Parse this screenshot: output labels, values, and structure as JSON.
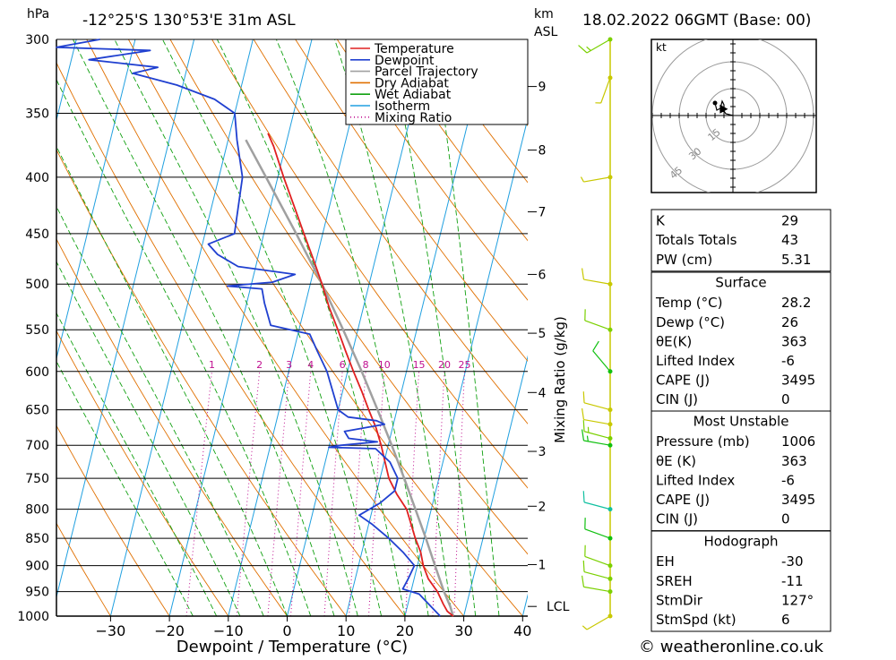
{
  "header": {
    "pressure_unit": "hPa",
    "location": "-12°25'S 130°53'E 31m ASL",
    "height_unit_1": "km",
    "height_unit_2": "ASL",
    "datetime": "18.02.2022 06GMT (Base: 00)"
  },
  "footer": {
    "copyright": "© weatheronline.co.uk"
  },
  "colors": {
    "temperature": "#e02020",
    "dewpoint": "#2040d0",
    "parcel": "#a0a0a0",
    "dry_adiabat": "#e07000",
    "wet_adiabat": "#10a010",
    "isotherm": "#20a0e0",
    "mixing_ratio": "#c01090",
    "wind_barb": "#c8c800"
  },
  "chart_data": {
    "type": "skew-t",
    "xlabel": "Dewpoint / Temperature (°C)",
    "ylabel_left": "hPa",
    "ylabel_right": "Mixing Ratio (g/kg)",
    "pressure_levels": [
      300,
      350,
      400,
      450,
      500,
      550,
      600,
      650,
      700,
      750,
      800,
      850,
      900,
      950,
      1000
    ],
    "pressure_labels": [
      "300",
      "350",
      "400",
      "450",
      "500",
      "550",
      "600",
      "650",
      "700",
      "750",
      "800",
      "850",
      "900",
      "950",
      "1000"
    ],
    "temperature_ticks": [
      -30,
      -20,
      -10,
      0,
      10,
      20,
      30,
      40
    ],
    "temperature_tick_labels": [
      "−30",
      "−20",
      "−10",
      "0",
      "10",
      "20",
      "30",
      "40"
    ],
    "xlim": [
      -40,
      40
    ],
    "ylim": [
      1000,
      300
    ],
    "km_ticks": [
      {
        "km": 1,
        "label": "1",
        "p": 898
      },
      {
        "km": 2,
        "label": "2",
        "p": 795
      },
      {
        "km": 3,
        "label": "3",
        "p": 709
      },
      {
        "km": 4,
        "label": "4",
        "p": 627
      },
      {
        "km": 5,
        "label": "5",
        "p": 554
      },
      {
        "km": 6,
        "label": "6",
        "p": 490
      },
      {
        "km": 7,
        "label": "7",
        "p": 430
      },
      {
        "km": 8,
        "label": "8",
        "p": 378
      },
      {
        "km": 9,
        "label": "9",
        "p": 331
      }
    ],
    "lcl": {
      "label": "LCL",
      "p": 980
    },
    "mixing_ratio_labels": [
      {
        "w": 1,
        "label": "1"
      },
      {
        "w": 2,
        "label": "2"
      },
      {
        "w": 3,
        "label": "3"
      },
      {
        "w": 4,
        "label": "4"
      },
      {
        "w": 6,
        "label": "6"
      },
      {
        "w": 8,
        "label": "8"
      },
      {
        "w": 10,
        "label": "10"
      },
      {
        "w": 15,
        "label": "15"
      },
      {
        "w": 20,
        "label": "20"
      },
      {
        "w": 25,
        "label": "25"
      }
    ],
    "mixing_ratio_label_pressure": 600,
    "legend": [
      {
        "key": "temperature",
        "label": "Temperature",
        "style": "solid"
      },
      {
        "key": "dewpoint",
        "label": "Dewpoint",
        "style": "solid"
      },
      {
        "key": "parcel",
        "label": "Parcel Trajectory",
        "style": "solid"
      },
      {
        "key": "dry_adiabat",
        "label": "Dry Adiabat",
        "style": "solid"
      },
      {
        "key": "wet_adiabat",
        "label": "Wet Adiabat",
        "style": "solid"
      },
      {
        "key": "isotherm",
        "label": "Isotherm",
        "style": "solid"
      },
      {
        "key": "mixing_ratio",
        "label": "Mixing Ratio",
        "style": "dotted"
      }
    ],
    "temperature_profile": [
      [
        1000,
        28.2
      ],
      [
        990,
        27.0
      ],
      [
        975,
        26.0
      ],
      [
        950,
        24.5
      ],
      [
        925,
        22.4
      ],
      [
        900,
        21.0
      ],
      [
        875,
        20.0
      ],
      [
        850,
        18.5
      ],
      [
        800,
        15.8
      ],
      [
        775,
        13.5
      ],
      [
        750,
        11.5
      ],
      [
        700,
        8.8
      ],
      [
        675,
        7.2
      ],
      [
        650,
        5.2
      ],
      [
        625,
        3.2
      ],
      [
        600,
        1.0
      ],
      [
        575,
        -1.2
      ],
      [
        550,
        -3.4
      ],
      [
        525,
        -5.8
      ],
      [
        500,
        -8.0
      ],
      [
        475,
        -10.5
      ],
      [
        450,
        -13.2
      ],
      [
        425,
        -16.0
      ],
      [
        400,
        -19.0
      ],
      [
        375,
        -22.0
      ],
      [
        365,
        -23.5
      ]
    ],
    "dewpoint_profile": [
      [
        1000,
        26.0
      ],
      [
        985,
        24.5
      ],
      [
        965,
        22.5
      ],
      [
        955,
        21.5
      ],
      [
        945,
        18.5
      ],
      [
        925,
        19.0
      ],
      [
        900,
        19.5
      ],
      [
        875,
        17.0
      ],
      [
        850,
        14.0
      ],
      [
        825,
        10.5
      ],
      [
        810,
        8.0
      ],
      [
        790,
        11.0
      ],
      [
        770,
        13.0
      ],
      [
        750,
        13.0
      ],
      [
        725,
        11.0
      ],
      [
        705,
        8.0
      ],
      [
        703,
        0.0
      ],
      [
        700,
        2.0
      ],
      [
        695,
        8.0
      ],
      [
        690,
        3.0
      ],
      [
        680,
        2.0
      ],
      [
        670,
        8.5
      ],
      [
        665,
        7.0
      ],
      [
        660,
        2.0
      ],
      [
        650,
        0.0
      ],
      [
        600,
        -3.5
      ],
      [
        575,
        -6.0
      ],
      [
        555,
        -8.0
      ],
      [
        545,
        -15.0
      ],
      [
        520,
        -17.0
      ],
      [
        505,
        -18.0
      ],
      [
        502,
        -24.0
      ],
      [
        498,
        -16.5
      ],
      [
        490,
        -13.0
      ],
      [
        482,
        -23.0
      ],
      [
        470,
        -27.0
      ],
      [
        460,
        -29.0
      ],
      [
        450,
        -25.0
      ],
      [
        400,
        -26.0
      ],
      [
        370,
        -28.5
      ],
      [
        350,
        -30.0
      ],
      [
        340,
        -34.0
      ],
      [
        330,
        -41.0
      ],
      [
        322,
        -49.0
      ],
      [
        318,
        -45.0
      ],
      [
        313,
        -57.0
      ],
      [
        307,
        -47.0
      ],
      [
        305,
        -63.0
      ],
      [
        300,
        -56.0
      ]
    ],
    "parcel_profile": [
      [
        1000,
        28.2
      ],
      [
        980,
        27.3
      ],
      [
        950,
        25.6
      ],
      [
        900,
        23.0
      ],
      [
        850,
        20.3
      ],
      [
        800,
        17.3
      ],
      [
        750,
        14.1
      ],
      [
        700,
        10.6
      ],
      [
        650,
        6.7
      ],
      [
        600,
        2.4
      ],
      [
        550,
        -2.5
      ],
      [
        500,
        -8.0
      ],
      [
        450,
        -14.5
      ],
      [
        400,
        -22.0
      ],
      [
        370,
        -27.0
      ]
    ],
    "wind_barbs": [
      {
        "p": 1000,
        "speed_kt": 5,
        "dir_deg": 240,
        "color": "#c8c800"
      },
      {
        "p": 950,
        "speed_kt": 10,
        "dir_deg": 280,
        "color": "#7ad000"
      },
      {
        "p": 925,
        "speed_kt": 10,
        "dir_deg": 285,
        "color": "#7ad000"
      },
      {
        "p": 900,
        "speed_kt": 10,
        "dir_deg": 290,
        "color": "#7ad000"
      },
      {
        "p": 850,
        "speed_kt": 10,
        "dir_deg": 290,
        "color": "#10c010"
      },
      {
        "p": 800,
        "speed_kt": 10,
        "dir_deg": 285,
        "color": "#10c0a0"
      },
      {
        "p": 700,
        "speed_kt": 15,
        "dir_deg": 280,
        "color": "#10c010"
      },
      {
        "p": 690,
        "speed_kt": 15,
        "dir_deg": 285,
        "color": "#7ad000"
      },
      {
        "p": 670,
        "speed_kt": 10,
        "dir_deg": 280,
        "color": "#c8c800"
      },
      {
        "p": 650,
        "speed_kt": 10,
        "dir_deg": 285,
        "color": "#c8c800"
      },
      {
        "p": 600,
        "speed_kt": 10,
        "dir_deg": 320,
        "color": "#10c010"
      },
      {
        "p": 550,
        "speed_kt": 10,
        "dir_deg": 290,
        "color": "#7ad000"
      },
      {
        "p": 500,
        "speed_kt": 10,
        "dir_deg": 280,
        "color": "#c8c800"
      },
      {
        "p": 400,
        "speed_kt": 5,
        "dir_deg": 260,
        "color": "#c8c800"
      },
      {
        "p": 325,
        "speed_kt": 5,
        "dir_deg": 200,
        "color": "#c8c800"
      },
      {
        "p": 300,
        "speed_kt": 15,
        "dir_deg": 240,
        "color": "#7ad000"
      }
    ],
    "hodograph": {
      "unit": "kt",
      "ring_labels": [
        "15",
        "30",
        "45"
      ],
      "rings_kt": [
        15,
        30,
        45
      ],
      "storm_motion": {
        "dir_deg": 127,
        "speed_kt": 6
      },
      "trace_kt": [
        [
          0,
          0
        ],
        [
          -4,
          1
        ],
        [
          -6,
          4
        ],
        [
          -7,
          3
        ],
        [
          -5,
          2
        ],
        [
          -5,
          6
        ],
        [
          -6,
          8
        ],
        [
          -7,
          4
        ],
        [
          -9,
          3
        ],
        [
          -10,
          7
        ]
      ]
    }
  },
  "indices": {
    "rows": [
      {
        "label": "K",
        "value": "29"
      },
      {
        "label": "Totals Totals",
        "value": "43"
      },
      {
        "label": "PW (cm)",
        "value": "5.31"
      }
    ]
  },
  "surface": {
    "title": "Surface",
    "rows": [
      {
        "label": "Temp (°C)",
        "value": "28.2"
      },
      {
        "label": "Dewp (°C)",
        "value": "26"
      },
      {
        "label": "θE(K)",
        "value": "363"
      },
      {
        "label": "Lifted Index",
        "value": "-6"
      },
      {
        "label": "CAPE (J)",
        "value": "3495"
      },
      {
        "label": "CIN (J)",
        "value": "0"
      }
    ]
  },
  "most_unstable": {
    "title": "Most Unstable",
    "rows": [
      {
        "label": "Pressure (mb)",
        "value": "1006"
      },
      {
        "label": "θE (K)",
        "value": "363"
      },
      {
        "label": "Lifted Index",
        "value": "-6"
      },
      {
        "label": "CAPE (J)",
        "value": "3495"
      },
      {
        "label": "CIN (J)",
        "value": "0"
      }
    ]
  },
  "hodograph_table": {
    "title": "Hodograph",
    "rows": [
      {
        "label": "EH",
        "value": "-30"
      },
      {
        "label": "SREH",
        "value": "-11"
      },
      {
        "label": "StmDir",
        "value": "127°"
      },
      {
        "label": "StmSpd (kt)",
        "value": "6"
      }
    ]
  }
}
